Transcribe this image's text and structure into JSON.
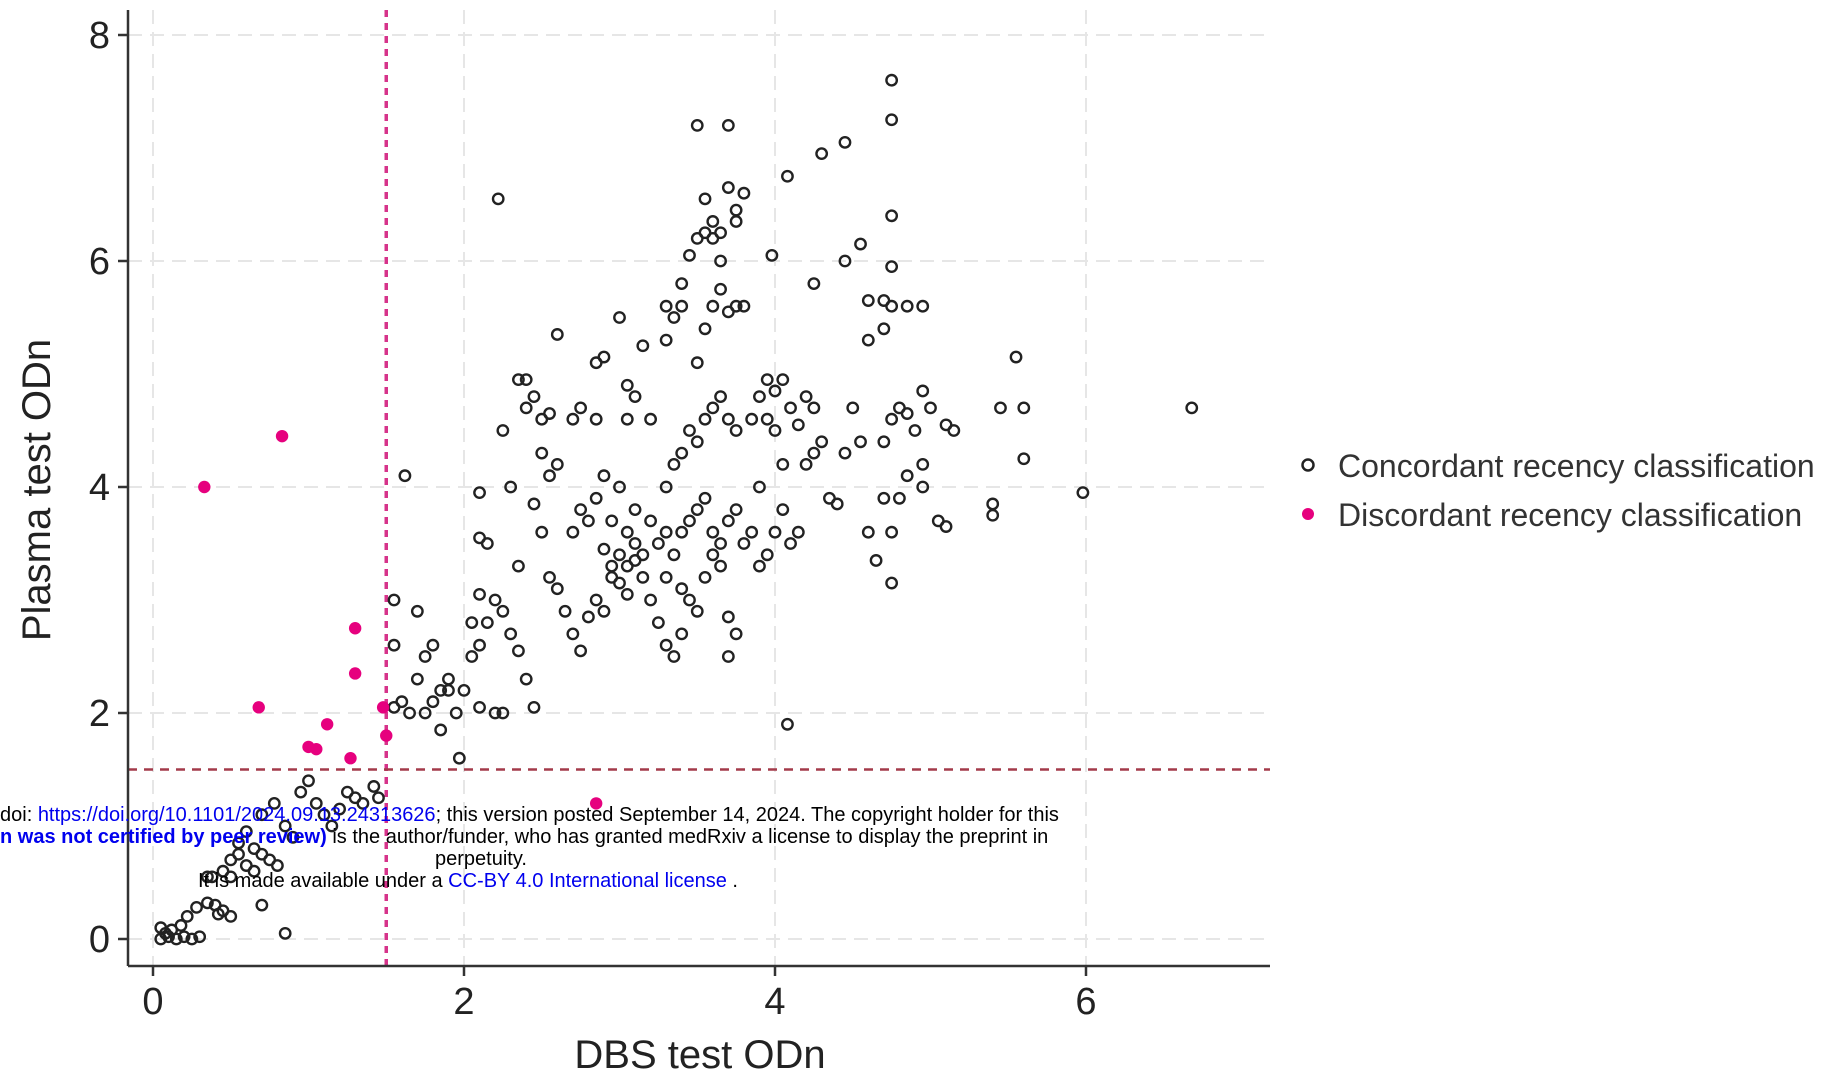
{
  "chart_data": {
    "type": "scatter",
    "xlabel": "DBS test ODn",
    "ylabel": "Plasma test ODn",
    "xlim": [
      -0.2,
      7.2
    ],
    "ylim": [
      -0.25,
      8.2
    ],
    "xticks": [
      0,
      2,
      4,
      6
    ],
    "yticks": [
      0,
      2,
      4,
      6,
      8
    ],
    "grid": true,
    "legend_position": "right",
    "reference_lines": {
      "vertical_x": 1.5,
      "horizontal_y": 1.5,
      "vertical_color": "#d6338a",
      "horizontal_color": "#a33a4a"
    },
    "series": [
      {
        "name": "Concordant recency classification",
        "marker": "hollow-circle",
        "color": "#222222",
        "points": [
          [
            0.05,
            0.0
          ],
          [
            0.08,
            0.05
          ],
          [
            0.1,
            0.02
          ],
          [
            0.12,
            0.08
          ],
          [
            0.15,
            0.0
          ],
          [
            0.05,
            0.1
          ],
          [
            0.2,
            0.02
          ],
          [
            0.25,
            0.0
          ],
          [
            0.3,
            0.02
          ],
          [
            0.18,
            0.12
          ],
          [
            0.22,
            0.2
          ],
          [
            0.28,
            0.28
          ],
          [
            0.35,
            0.32
          ],
          [
            0.4,
            0.3
          ],
          [
            0.45,
            0.25
          ],
          [
            0.5,
            0.2
          ],
          [
            0.42,
            0.22
          ],
          [
            0.38,
            0.55
          ],
          [
            0.45,
            0.6
          ],
          [
            0.5,
            0.7
          ],
          [
            0.55,
            0.75
          ],
          [
            0.6,
            0.65
          ],
          [
            0.65,
            0.8
          ],
          [
            0.7,
            0.75
          ],
          [
            0.75,
            0.7
          ],
          [
            0.8,
            0.65
          ],
          [
            0.55,
            0.85
          ],
          [
            0.6,
            0.95
          ],
          [
            0.7,
            1.1
          ],
          [
            0.78,
            1.2
          ],
          [
            0.85,
            1.0
          ],
          [
            0.9,
            0.9
          ],
          [
            0.95,
            1.3
          ],
          [
            1.0,
            1.4
          ],
          [
            1.05,
            1.2
          ],
          [
            1.1,
            1.1
          ],
          [
            1.15,
            1.0
          ],
          [
            1.2,
            1.15
          ],
          [
            1.25,
            1.3
          ],
          [
            1.3,
            1.25
          ],
          [
            1.35,
            1.2
          ],
          [
            1.42,
            1.35
          ],
          [
            1.45,
            1.25
          ],
          [
            0.7,
            0.3
          ],
          [
            0.85,
            0.05
          ],
          [
            0.65,
            0.6
          ],
          [
            0.5,
            0.55
          ],
          [
            0.35,
            0.55
          ],
          [
            1.55,
            2.05
          ],
          [
            1.6,
            2.1
          ],
          [
            1.65,
            2.0
          ],
          [
            1.7,
            2.3
          ],
          [
            1.75,
            2.5
          ],
          [
            1.8,
            2.6
          ],
          [
            1.85,
            2.2
          ],
          [
            1.9,
            2.3
          ],
          [
            1.55,
            2.6
          ],
          [
            1.55,
            3.0
          ],
          [
            1.62,
            4.1
          ],
          [
            1.7,
            2.9
          ],
          [
            1.75,
            2.0
          ],
          [
            1.8,
            2.1
          ],
          [
            1.85,
            1.85
          ],
          [
            1.9,
            2.2
          ],
          [
            1.95,
            2.0
          ],
          [
            2.0,
            2.2
          ],
          [
            2.05,
            2.5
          ],
          [
            2.1,
            2.6
          ],
          [
            2.15,
            2.8
          ],
          [
            2.2,
            3.0
          ],
          [
            2.25,
            2.9
          ],
          [
            2.3,
            2.7
          ],
          [
            2.35,
            2.55
          ],
          [
            2.4,
            2.3
          ],
          [
            2.45,
            2.05
          ],
          [
            2.2,
            2.0
          ],
          [
            2.1,
            2.05
          ],
          [
            2.25,
            2.0
          ],
          [
            1.97,
            1.6
          ],
          [
            2.05,
            2.8
          ],
          [
            2.1,
            3.05
          ],
          [
            2.1,
            3.55
          ],
          [
            2.15,
            3.5
          ],
          [
            2.1,
            3.95
          ],
          [
            2.22,
            6.55
          ],
          [
            2.25,
            4.5
          ],
          [
            2.3,
            4.0
          ],
          [
            2.35,
            3.3
          ],
          [
            2.35,
            4.95
          ],
          [
            2.4,
            4.7
          ],
          [
            2.4,
            4.95
          ],
          [
            2.45,
            4.8
          ],
          [
            2.5,
            4.6
          ],
          [
            2.55,
            4.65
          ],
          [
            2.5,
            4.3
          ],
          [
            2.55,
            4.1
          ],
          [
            2.6,
            4.2
          ],
          [
            2.6,
            5.35
          ],
          [
            2.45,
            3.85
          ],
          [
            2.5,
            3.6
          ],
          [
            2.55,
            3.2
          ],
          [
            2.6,
            3.1
          ],
          [
            2.65,
            2.9
          ],
          [
            2.7,
            2.7
          ],
          [
            2.75,
            2.55
          ],
          [
            2.8,
            2.85
          ],
          [
            2.85,
            3.0
          ],
          [
            2.9,
            2.9
          ],
          [
            2.95,
            3.2
          ],
          [
            3.0,
            3.4
          ],
          [
            3.05,
            3.3
          ],
          [
            3.1,
            3.5
          ],
          [
            3.15,
            3.2
          ],
          [
            3.2,
            3.0
          ],
          [
            3.25,
            2.8
          ],
          [
            3.3,
            2.6
          ],
          [
            3.35,
            2.5
          ],
          [
            3.4,
            2.7
          ],
          [
            2.7,
            3.6
          ],
          [
            2.75,
            3.8
          ],
          [
            2.8,
            3.7
          ],
          [
            2.85,
            3.9
          ],
          [
            2.9,
            4.1
          ],
          [
            2.95,
            3.7
          ],
          [
            3.0,
            4.0
          ],
          [
            3.05,
            3.6
          ],
          [
            3.1,
            3.8
          ],
          [
            3.15,
            3.4
          ],
          [
            2.7,
            4.6
          ],
          [
            2.75,
            4.7
          ],
          [
            2.85,
            4.6
          ],
          [
            2.85,
            5.1
          ],
          [
            2.9,
            5.15
          ],
          [
            3.0,
            5.5
          ],
          [
            3.05,
            4.6
          ],
          [
            3.05,
            4.9
          ],
          [
            3.1,
            4.8
          ],
          [
            3.15,
            5.25
          ],
          [
            3.2,
            4.6
          ],
          [
            3.3,
            5.3
          ],
          [
            3.3,
            5.6
          ],
          [
            3.35,
            5.5
          ],
          [
            3.4,
            5.6
          ],
          [
            3.4,
            5.8
          ],
          [
            3.45,
            6.05
          ],
          [
            3.5,
            6.2
          ],
          [
            3.55,
            6.25
          ],
          [
            3.6,
            6.2
          ],
          [
            3.5,
            7.2
          ],
          [
            3.7,
            7.2
          ],
          [
            3.55,
            6.55
          ],
          [
            3.6,
            6.35
          ],
          [
            3.65,
            6.25
          ],
          [
            3.7,
            6.65
          ],
          [
            3.75,
            6.45
          ],
          [
            3.75,
            6.35
          ],
          [
            3.8,
            6.6
          ],
          [
            3.65,
            6.0
          ],
          [
            3.3,
            3.2
          ],
          [
            3.35,
            3.4
          ],
          [
            3.4,
            3.6
          ],
          [
            3.45,
            3.7
          ],
          [
            3.5,
            3.8
          ],
          [
            3.55,
            3.9
          ],
          [
            3.6,
            3.6
          ],
          [
            3.65,
            3.5
          ],
          [
            3.7,
            3.7
          ],
          [
            3.75,
            3.8
          ],
          [
            3.3,
            4.0
          ],
          [
            3.35,
            4.2
          ],
          [
            3.4,
            4.3
          ],
          [
            3.45,
            4.5
          ],
          [
            3.5,
            4.4
          ],
          [
            3.55,
            4.6
          ],
          [
            3.6,
            4.7
          ],
          [
            3.65,
            4.8
          ],
          [
            3.7,
            4.6
          ],
          [
            3.75,
            4.5
          ],
          [
            3.4,
            3.1
          ],
          [
            3.45,
            3.0
          ],
          [
            3.5,
            2.9
          ],
          [
            3.55,
            3.2
          ],
          [
            3.6,
            3.4
          ],
          [
            3.65,
            3.3
          ],
          [
            3.7,
            2.85
          ],
          [
            3.75,
            2.7
          ],
          [
            3.7,
            2.5
          ],
          [
            3.5,
            5.1
          ],
          [
            3.55,
            5.4
          ],
          [
            3.6,
            5.6
          ],
          [
            3.65,
            5.75
          ],
          [
            3.7,
            5.55
          ],
          [
            3.75,
            5.6
          ],
          [
            3.8,
            5.6
          ],
          [
            3.9,
            4.0
          ],
          [
            3.95,
            4.6
          ],
          [
            4.0,
            4.5
          ],
          [
            4.05,
            4.2
          ],
          [
            3.8,
            3.5
          ],
          [
            3.85,
            3.6
          ],
          [
            3.9,
            3.3
          ],
          [
            3.95,
            3.4
          ],
          [
            4.0,
            3.6
          ],
          [
            4.05,
            3.8
          ],
          [
            4.1,
            3.5
          ],
          [
            4.15,
            3.6
          ],
          [
            4.2,
            4.2
          ],
          [
            4.25,
            4.3
          ],
          [
            3.85,
            4.6
          ],
          [
            3.9,
            4.8
          ],
          [
            3.95,
            4.95
          ],
          [
            4.0,
            4.85
          ],
          [
            4.05,
            4.95
          ],
          [
            4.1,
            4.7
          ],
          [
            4.15,
            4.55
          ],
          [
            4.2,
            4.8
          ],
          [
            4.25,
            4.7
          ],
          [
            4.3,
            4.4
          ],
          [
            3.98,
            6.05
          ],
          [
            4.08,
            6.75
          ],
          [
            4.25,
            5.8
          ],
          [
            4.3,
            6.95
          ],
          [
            4.45,
            7.05
          ],
          [
            4.45,
            6.0
          ],
          [
            4.55,
            6.15
          ],
          [
            4.6,
            5.65
          ],
          [
            4.7,
            5.65
          ],
          [
            4.75,
            5.6
          ],
          [
            4.6,
            5.3
          ],
          [
            4.7,
            5.4
          ],
          [
            4.75,
            5.95
          ],
          [
            4.85,
            5.6
          ],
          [
            4.95,
            5.6
          ],
          [
            4.75,
            6.4
          ],
          [
            4.75,
            7.25
          ],
          [
            4.75,
            7.6
          ],
          [
            4.35,
            3.9
          ],
          [
            4.4,
            3.85
          ],
          [
            4.45,
            4.3
          ],
          [
            4.5,
            4.7
          ],
          [
            4.55,
            4.4
          ],
          [
            4.6,
            3.6
          ],
          [
            4.65,
            3.35
          ],
          [
            4.7,
            3.9
          ],
          [
            4.75,
            3.15
          ],
          [
            4.75,
            3.6
          ],
          [
            4.8,
            3.9
          ],
          [
            4.85,
            4.1
          ],
          [
            4.7,
            4.4
          ],
          [
            4.75,
            4.6
          ],
          [
            4.8,
            4.7
          ],
          [
            4.85,
            4.65
          ],
          [
            4.9,
            4.5
          ],
          [
            4.95,
            4.2
          ],
          [
            4.95,
            4.0
          ],
          [
            4.95,
            4.85
          ],
          [
            5.0,
            4.7
          ],
          [
            5.05,
            3.7
          ],
          [
            5.1,
            3.65
          ],
          [
            5.1,
            4.55
          ],
          [
            5.15,
            4.5
          ],
          [
            5.4,
            3.85
          ],
          [
            5.4,
            3.75
          ],
          [
            5.45,
            4.7
          ],
          [
            5.55,
            5.15
          ],
          [
            5.6,
            4.7
          ],
          [
            5.6,
            4.25
          ],
          [
            5.98,
            3.95
          ],
          [
            6.68,
            4.7
          ],
          [
            4.08,
            1.9
          ],
          [
            3.2,
            3.7
          ],
          [
            3.25,
            3.5
          ],
          [
            3.3,
            3.6
          ],
          [
            2.9,
            3.45
          ],
          [
            2.95,
            3.3
          ],
          [
            3.0,
            3.15
          ],
          [
            3.05,
            3.05
          ],
          [
            3.1,
            3.35
          ]
        ]
      },
      {
        "name": "Discordant recency classification",
        "marker": "filled-circle",
        "color": "#e6007e",
        "points": [
          [
            0.33,
            4.0
          ],
          [
            0.83,
            4.45
          ],
          [
            0.68,
            2.05
          ],
          [
            1.0,
            1.7
          ],
          [
            1.05,
            1.68
          ],
          [
            1.12,
            1.9
          ],
          [
            1.27,
            1.6
          ],
          [
            1.3,
            2.35
          ],
          [
            1.3,
            2.75
          ],
          [
            1.48,
            2.05
          ],
          [
            1.5,
            1.8
          ],
          [
            2.85,
            1.2
          ]
        ]
      }
    ]
  },
  "watermark": {
    "doi_prefix": "doi: ",
    "doi_link": "https://doi.org/10.1101/2024.09.13.24313626",
    "doi_suffix": "; this version posted September 14, 2024. The copyright holder for this",
    "line2_bold": "n was not certified by peer review)",
    "line2_rest": " is the author/funder, who has granted medRxiv a license to display the preprint in",
    "line3": "perpetuity.",
    "line4_prefix": "It is made available under a ",
    "line4_link": "CC-BY 4.0 International license",
    "line4_suffix": " ."
  }
}
